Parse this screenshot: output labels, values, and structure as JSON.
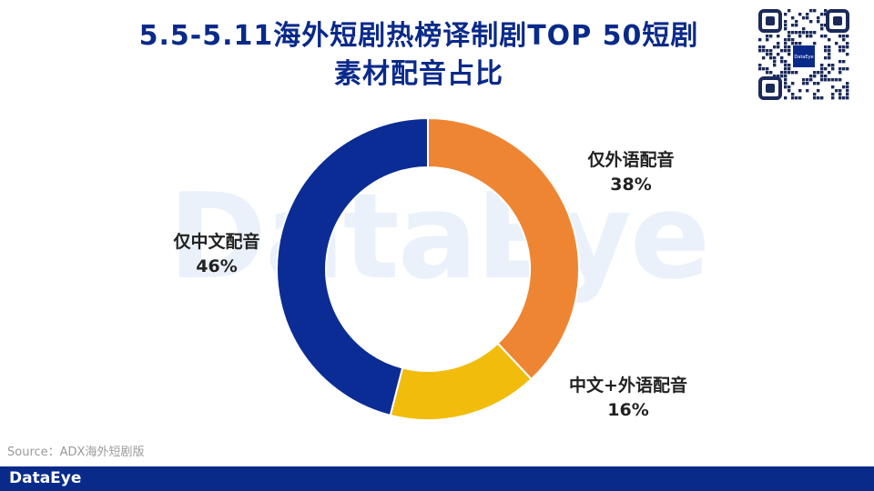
{
  "title": {
    "line1": "5.5-5.11海外短剧热榜译制剧TOP 50短剧",
    "line2": "素材配音占比"
  },
  "watermark": "DataEye",
  "source": "Source：ADX海外短剧版",
  "footer": {
    "brand": "DataEye"
  },
  "qr": {
    "center_label": "DataEye"
  },
  "colors": {
    "title": "#0a2a8a",
    "footer": "#0a2a8a",
    "orange": "#ee8533",
    "yellow": "#f2bc0c",
    "blue": "#0b2c94"
  },
  "chart_data": {
    "type": "pie",
    "variant": "donut",
    "title": "5.5-5.11海外短剧热榜译制剧TOP 50短剧素材配音占比",
    "slices": [
      {
        "label": "仅外语配音",
        "value": 38,
        "display": "38%",
        "color": "#ee8533"
      },
      {
        "label": "中文+外语配音",
        "value": 16,
        "display": "16%",
        "color": "#f2bc0c"
      },
      {
        "label": "仅中文配音",
        "value": 46,
        "display": "46%",
        "color": "#0b2c94"
      }
    ],
    "start": "top, clockwise"
  }
}
